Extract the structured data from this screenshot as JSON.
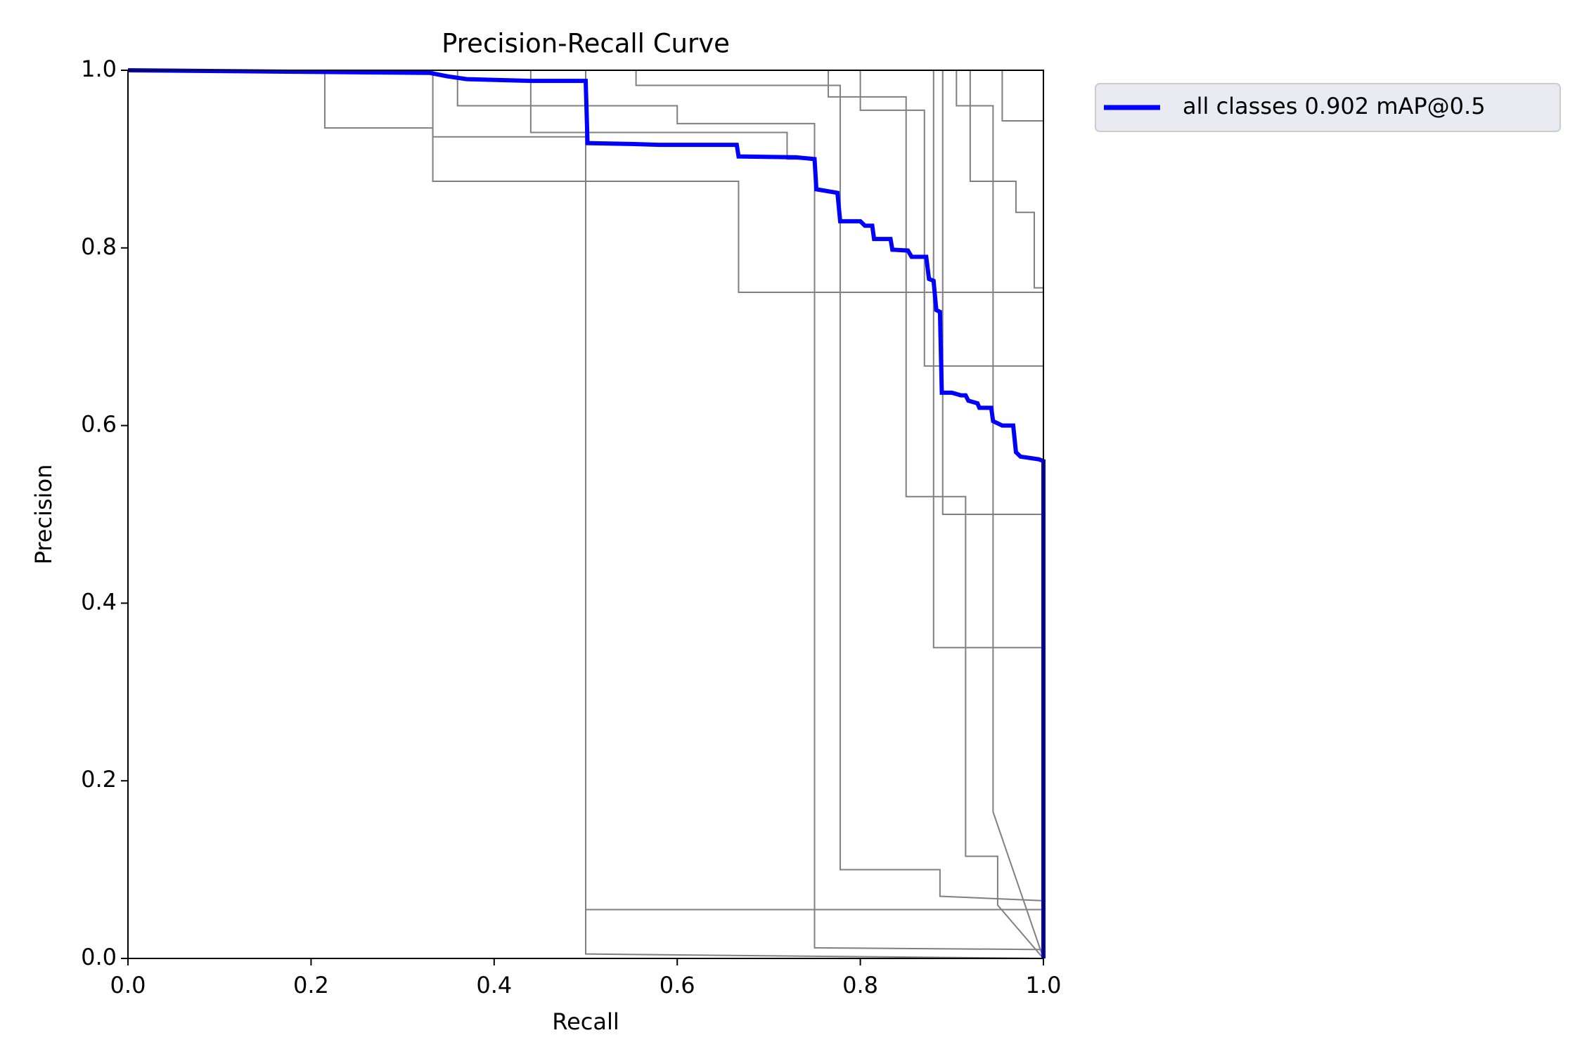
{
  "chart_data": {
    "type": "line",
    "title": "Precision-Recall Curve",
    "x_label": "Recall",
    "y_label": "Precision",
    "xlim": [
      0,
      1
    ],
    "ylim": [
      0,
      1
    ],
    "xticks": [
      {
        "value": 0,
        "label": "0.0"
      },
      0.2,
      0.4,
      0.6,
      0.8,
      {
        "value": 1,
        "label": "1.0"
      }
    ],
    "yticks": [
      {
        "value": 0,
        "label": "0.0"
      },
      0.2,
      0.4,
      0.6,
      0.8,
      {
        "value": 1,
        "label": "1.0"
      }
    ],
    "legend": "outside-upper-right",
    "series": [
      {
        "color": "#808080",
        "x": [
          0,
          0.215,
          0.215,
          0.333,
          0.333,
          0.667,
          0.667,
          1,
          1
        ],
        "values": [
          1,
          1,
          0.935,
          0.935,
          0.875,
          0.875,
          0.75,
          0.75,
          0
        ]
      },
      {
        "color": "#808080",
        "x": [
          0,
          0.333,
          0.333,
          0.5,
          0.5,
          1
        ],
        "values": [
          1,
          1,
          0.925,
          0.925,
          0.005,
          0
        ]
      },
      {
        "color": "#808080",
        "x": [
          0,
          0.36,
          0.36,
          0.6,
          0.6,
          0.75,
          0.75,
          1,
          1
        ],
        "values": [
          1,
          1,
          0.96,
          0.96,
          0.94,
          0.94,
          0.012,
          0.01,
          0
        ]
      },
      {
        "color": "#808080",
        "x": [
          0,
          0.44,
          0.44,
          0.72,
          0.72,
          0.75,
          0.75,
          1,
          1
        ],
        "values": [
          1,
          1,
          0.93,
          0.93,
          0.9,
          0.9,
          0.75,
          0.75,
          0
        ]
      },
      {
        "color": "#808080",
        "x": [
          0,
          0.555,
          0.555,
          0.778,
          0.778,
          0.887,
          0.887,
          1,
          1
        ],
        "values": [
          1,
          1,
          0.983,
          0.983,
          0.1,
          0.1,
          0.07,
          0.065,
          0
        ]
      },
      {
        "color": "#808080",
        "x": [
          0,
          0.765,
          0.765,
          0.85,
          0.85,
          0.915,
          0.915,
          0.95,
          0.95,
          1
        ],
        "values": [
          1,
          1,
          0.97,
          0.97,
          0.52,
          0.52,
          0.115,
          0.115,
          0.06,
          0
        ]
      },
      {
        "color": "#808080",
        "x": [
          0,
          0.88,
          0.88,
          1,
          1
        ],
        "values": [
          1,
          1,
          0.35,
          0.35,
          0
        ]
      },
      {
        "color": "#808080",
        "x": [
          0,
          0.905,
          0.905,
          0.945,
          0.945,
          1
        ],
        "values": [
          1,
          1,
          0.96,
          0.96,
          0.165,
          0
        ]
      },
      {
        "color": "#808080",
        "x": [
          0,
          0.8,
          0.8,
          0.87,
          0.87,
          1,
          1
        ],
        "values": [
          1,
          1,
          0.955,
          0.955,
          0.667,
          0.667,
          0
        ]
      },
      {
        "color": "#808080",
        "x": [
          0,
          0.5,
          0.5,
          1,
          1
        ],
        "values": [
          1,
          1,
          0.055,
          0.055,
          0
        ]
      },
      {
        "color": "#808080",
        "x": [
          0,
          0.955,
          0.955,
          1,
          1
        ],
        "values": [
          1,
          1,
          0.943,
          0.943,
          0
        ]
      },
      {
        "color": "#808080",
        "x": [
          0,
          0.92,
          0.92,
          0.97,
          0.97,
          0.99,
          0.99,
          1,
          1
        ],
        "values": [
          1,
          1,
          0.875,
          0.875,
          0.84,
          0.84,
          0.755,
          0.755,
          0
        ]
      },
      {
        "color": "#808080",
        "x": [
          0,
          0.89,
          0.89,
          1,
          1
        ],
        "values": [
          1,
          1,
          0.5,
          0.5,
          0
        ]
      },
      {
        "name": "all classes 0.902 mAP@0.5",
        "color": "#0000ff",
        "x": [
          0,
          0.33,
          0.35,
          0.37,
          0.44,
          0.5,
          0.502,
          0.55,
          0.58,
          0.665,
          0.667,
          0.73,
          0.75,
          0.752,
          0.775,
          0.778,
          0.8,
          0.805,
          0.813,
          0.815,
          0.833,
          0.835,
          0.852,
          0.856,
          0.872,
          0.875,
          0.88,
          0.883,
          0.887,
          0.889,
          0.9,
          0.91,
          0.915,
          0.918,
          0.928,
          0.93,
          0.943,
          0.945,
          0.955,
          0.967,
          0.97,
          0.975,
          0.995,
          1,
          1
        ],
        "values": [
          1,
          0.997,
          0.993,
          0.99,
          0.988,
          0.988,
          0.918,
          0.917,
          0.916,
          0.916,
          0.903,
          0.902,
          0.9,
          0.866,
          0.862,
          0.83,
          0.83,
          0.825,
          0.825,
          0.81,
          0.81,
          0.798,
          0.797,
          0.79,
          0.79,
          0.765,
          0.763,
          0.73,
          0.728,
          0.637,
          0.637,
          0.634,
          0.634,
          0.628,
          0.625,
          0.62,
          0.62,
          0.605,
          0.6,
          0.6,
          0.57,
          0.565,
          0.562,
          0.56,
          0
        ]
      }
    ]
  }
}
